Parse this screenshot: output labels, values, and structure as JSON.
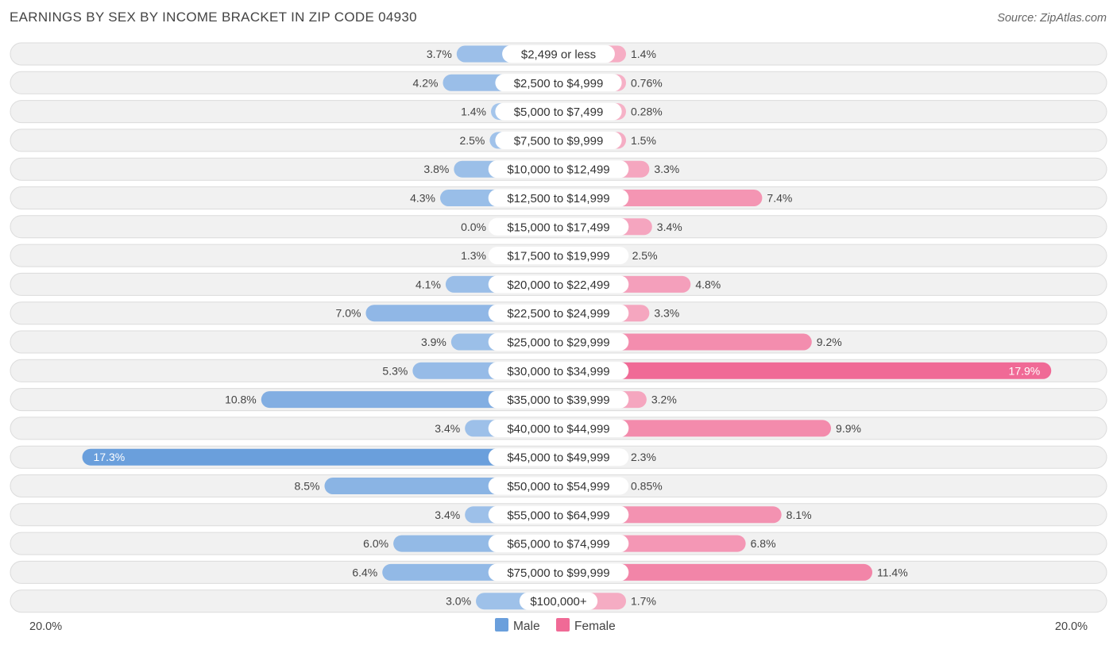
{
  "chart_data": {
    "type": "bar",
    "orientation": "diverging-horizontal",
    "title": "EARNINGS BY SEX BY INCOME BRACKET IN ZIP CODE 04930",
    "source": "Source: ZipAtlas.com",
    "categories": [
      "$2,499 or less",
      "$2,500 to $4,999",
      "$5,000 to $7,499",
      "$7,500 to $9,999",
      "$10,000 to $12,499",
      "$12,500 to $14,999",
      "$15,000 to $17,499",
      "$17,500 to $19,999",
      "$20,000 to $22,499",
      "$22,500 to $24,999",
      "$25,000 to $29,999",
      "$30,000 to $34,999",
      "$35,000 to $39,999",
      "$40,000 to $44,999",
      "$45,000 to $49,999",
      "$50,000 to $54,999",
      "$55,000 to $64,999",
      "$65,000 to $74,999",
      "$75,000 to $99,999",
      "$100,000+"
    ],
    "series": [
      {
        "name": "Male",
        "values": [
          3.7,
          4.2,
          1.4,
          2.5,
          3.8,
          4.3,
          0.0,
          1.3,
          4.1,
          7.0,
          3.9,
          5.3,
          10.8,
          3.4,
          17.3,
          8.5,
          3.4,
          6.0,
          6.4,
          3.0
        ],
        "labels": [
          "3.7%",
          "4.2%",
          "1.4%",
          "2.5%",
          "3.8%",
          "4.3%",
          "0.0%",
          "1.3%",
          "4.1%",
          "7.0%",
          "3.9%",
          "5.3%",
          "10.8%",
          "3.4%",
          "17.3%",
          "8.5%",
          "3.4%",
          "6.0%",
          "6.4%",
          "3.0%"
        ]
      },
      {
        "name": "Female",
        "values": [
          1.4,
          0.76,
          0.28,
          1.5,
          3.3,
          7.4,
          3.4,
          2.5,
          4.8,
          3.3,
          9.2,
          17.9,
          3.2,
          9.9,
          2.3,
          0.85,
          8.1,
          6.8,
          11.4,
          1.7
        ],
        "labels": [
          "1.4%",
          "0.76%",
          "0.28%",
          "1.5%",
          "3.3%",
          "7.4%",
          "3.4%",
          "2.5%",
          "4.8%",
          "3.3%",
          "9.2%",
          "17.9%",
          "3.2%",
          "9.9%",
          "2.3%",
          "0.85%",
          "8.1%",
          "6.8%",
          "11.4%",
          "1.7%"
        ]
      }
    ],
    "xlim": [
      -20,
      20
    ],
    "axis_labels": {
      "left": "20.0%",
      "right": "20.0%"
    },
    "legend": {
      "position": "bottom-center",
      "items": [
        "Male",
        "Female"
      ]
    },
    "colors": {
      "male_light": "#a9c8ec",
      "male_dark": "#6a9fdc",
      "female_light": "#f6b3c8",
      "female_dark": "#f06a96",
      "row_bg": "#f1f1f1",
      "row_border": "#dcdcdc",
      "label_bg": "#ffffff",
      "title": "#444444",
      "text": "#444444"
    }
  }
}
